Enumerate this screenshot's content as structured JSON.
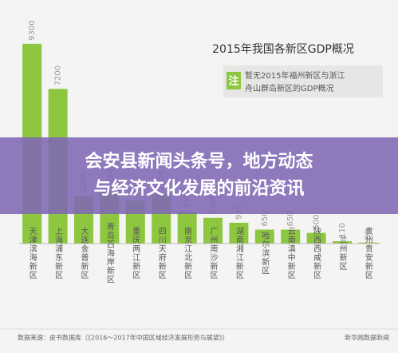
{
  "chart_data": {
    "type": "bar",
    "title": "2015年我国各新区GDP概况",
    "note_mark": "注",
    "note": [
      "暂无2015年福州新区与浙江",
      "舟山群岛新区的GDP概况"
    ],
    "categories": [
      "天津滨海新区",
      "上海浦东新区",
      "大连金普新区",
      "青岛西海岸新区",
      "重庆两江新区",
      "四川天府新区",
      "南京江北新区",
      "广州南沙新区",
      "湖南湘江新区",
      "哈尔滨新区",
      "云南滇中新区",
      "陕西西咸新区",
      "兰州新区",
      "贵州贵安新区"
    ],
    "values": [
      9300,
      7200,
      2200,
      2400,
      2000,
      2300,
      1500,
      1200,
      970,
      650,
      650,
      500,
      110,
      50
    ],
    "color": "#8dc63f",
    "ylim": [
      0,
      10000
    ],
    "source": "数据来源：皮书数据库（《2016～2017年中国区域经济发展形势与展望》）",
    "credit": "新华网数据新闻",
    "banner": [
      "会安县新闻头条号，地方动态",
      "与经济文化发展的前沿资讯"
    ]
  }
}
